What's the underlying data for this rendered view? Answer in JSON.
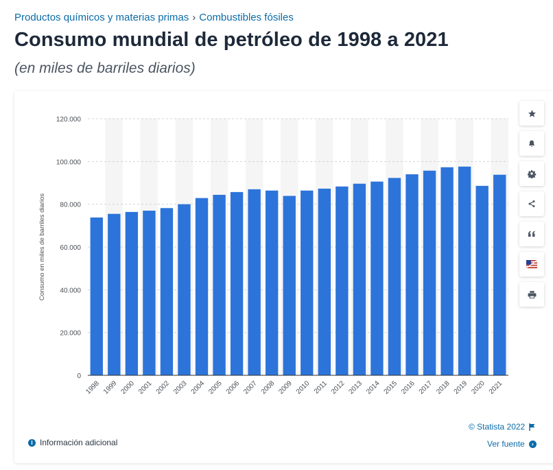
{
  "breadcrumb": {
    "first": "Productos químicos y materias primas",
    "separator": "›",
    "second": "Combustibles fósiles"
  },
  "header": {
    "title": "Consumo mundial de petróleo de 1998 a 2021",
    "subtitle": "(en miles de barriles diarios)"
  },
  "colors": {
    "bar": "#2d74da",
    "band": "#f5f5f5",
    "link": "#0b6ba8"
  },
  "chart_data": {
    "type": "bar",
    "title": "Consumo mundial de petróleo de 1998 a 2021",
    "xlabel": "",
    "ylabel": "Consumo en miles de barriles diarios",
    "ylim": [
      0,
      120000
    ],
    "yticks": [
      "0",
      "20.000",
      "40.000",
      "60.000",
      "80.000",
      "100.000",
      "120.000"
    ],
    "ytick_values": [
      0,
      20000,
      40000,
      60000,
      80000,
      100000,
      120000
    ],
    "grid": true,
    "categories": [
      "1998",
      "1999",
      "2000",
      "2001",
      "2002",
      "2003",
      "2004",
      "2005",
      "2006",
      "2007",
      "2008",
      "2009",
      "2010",
      "2011",
      "2012",
      "2013",
      "2014",
      "2015",
      "2016",
      "2017",
      "2018",
      "2019",
      "2020",
      "2021"
    ],
    "values": [
      73800,
      75500,
      76400,
      77000,
      78200,
      80000,
      82900,
      84400,
      85700,
      87000,
      86400,
      83900,
      86400,
      87300,
      88300,
      89600,
      90600,
      92300,
      94000,
      95700,
      97300,
      97600,
      88600,
      93800
    ]
  },
  "toolbar": {
    "buttons": [
      "star-icon",
      "bell-icon",
      "gear-icon",
      "share-icon",
      "quote-icon",
      "flag-icon",
      "print-icon"
    ]
  },
  "footer": {
    "copyright": "© Statista 2022",
    "source": "Ver fuente",
    "info": "Información adicional"
  }
}
